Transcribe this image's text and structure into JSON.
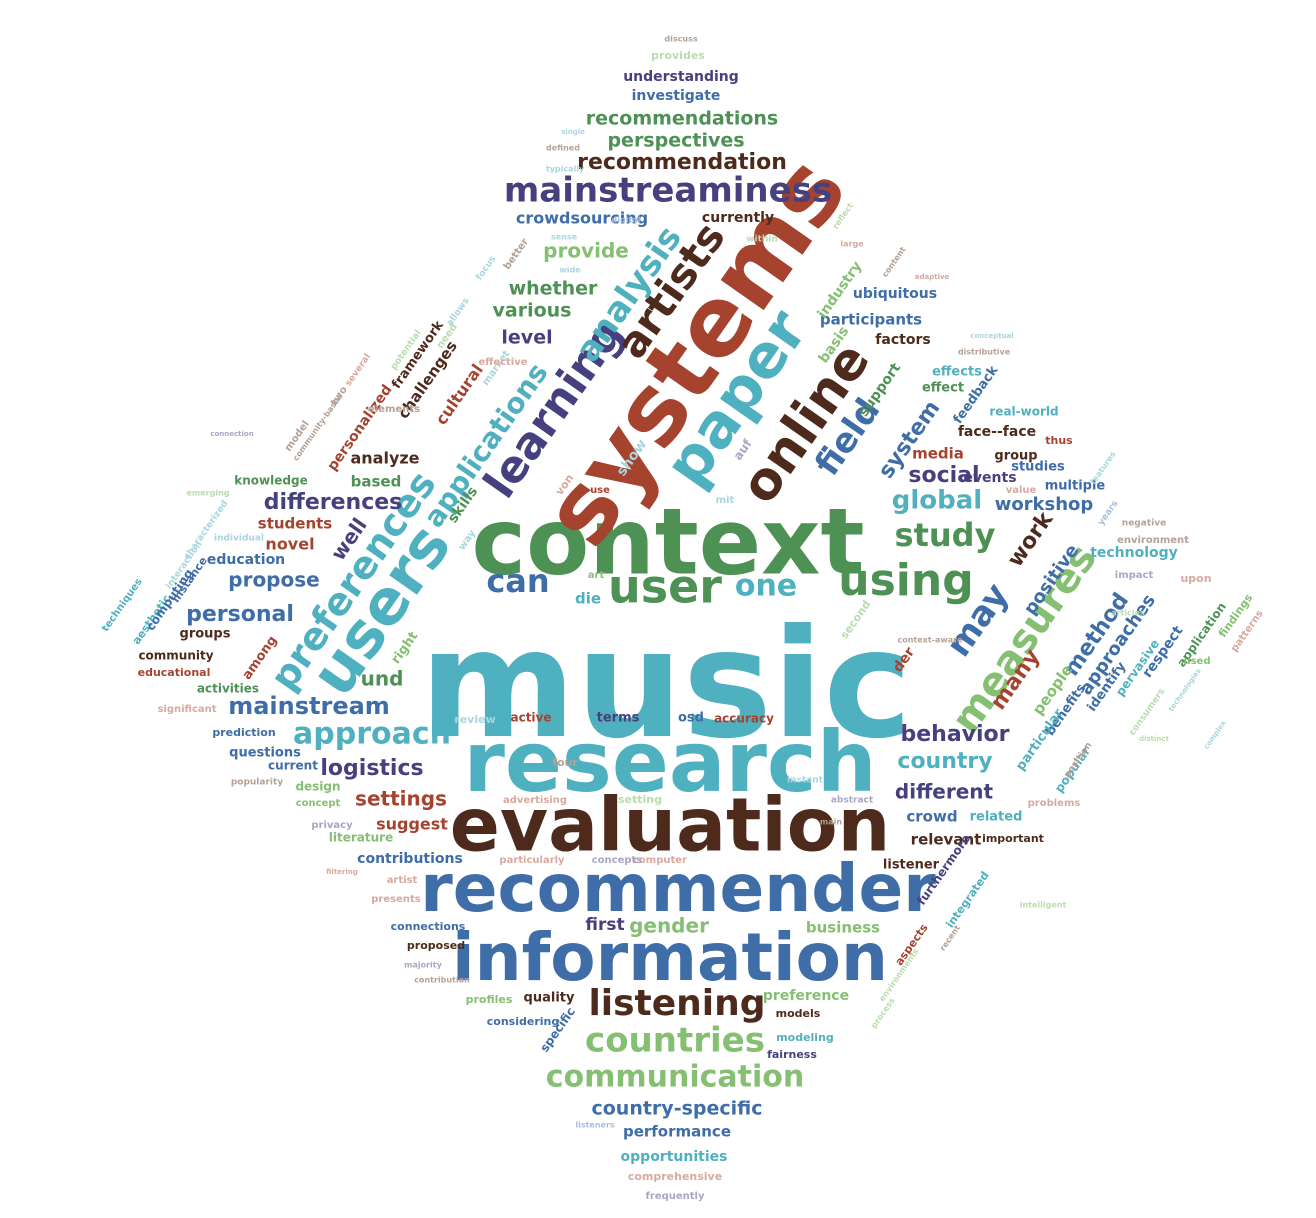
{
  "palette": {
    "teal": "#4fb0bf",
    "green": "#4e9154",
    "rust": "#a5432f",
    "navy": "#47407f",
    "brown": "#4d2a1c",
    "blue": "#3e6da8",
    "light_green": "#85bf72",
    "faint_teal": "#a9d6de",
    "faint_green": "#b9dcae",
    "faint_rust": "#d8a99e",
    "faint_navy": "#a9a5c6",
    "faint_blue": "#a8bfdc",
    "faint_brown": "#b5a195"
  },
  "words": [
    {
      "text": "music",
      "color": "teal"
    },
    {
      "text": "context",
      "color": "green"
    },
    {
      "text": "systems",
      "color": "rust"
    },
    {
      "text": "research",
      "color": "teal"
    },
    {
      "text": "evaluation",
      "color": "brown"
    },
    {
      "text": "recommender",
      "color": "blue"
    },
    {
      "text": "information",
      "color": "blue"
    },
    {
      "text": "paper",
      "color": "teal"
    },
    {
      "text": "users",
      "color": "teal"
    },
    {
      "text": "online",
      "color": "brown"
    },
    {
      "text": "learning",
      "color": "navy"
    },
    {
      "text": "user",
      "color": "green"
    },
    {
      "text": "using",
      "color": "green"
    },
    {
      "text": "preferences",
      "color": "teal"
    },
    {
      "text": "measures",
      "color": "light_green"
    },
    {
      "text": "artists",
      "color": "brown"
    },
    {
      "text": "analysis",
      "color": "teal"
    },
    {
      "text": "mainstreaminess",
      "color": "navy"
    },
    {
      "text": "field",
      "color": "blue"
    },
    {
      "text": "may",
      "color": "blue"
    },
    {
      "text": "can",
      "color": "blue"
    },
    {
      "text": "one",
      "color": "teal"
    },
    {
      "text": "applications",
      "color": "teal"
    },
    {
      "text": "listening",
      "color": "brown"
    },
    {
      "text": "countries",
      "color": "light_green"
    },
    {
      "text": "communication",
      "color": "light_green"
    },
    {
      "text": "approach",
      "color": "teal"
    },
    {
      "text": "study",
      "color": "green"
    },
    {
      "text": "global",
      "color": "teal"
    },
    {
      "text": "social",
      "color": "navy"
    },
    {
      "text": "mainstream",
      "color": "blue"
    },
    {
      "text": "logistics",
      "color": "navy"
    },
    {
      "text": "behavior",
      "color": "navy"
    },
    {
      "text": "country",
      "color": "teal"
    },
    {
      "text": "different",
      "color": "navy"
    },
    {
      "text": "settings",
      "color": "rust"
    },
    {
      "text": "recommendation",
      "color": "brown"
    },
    {
      "text": "recommendations",
      "color": "green"
    },
    {
      "text": "perspectives",
      "color": "green"
    },
    {
      "text": "crowdsourcing",
      "color": "blue"
    },
    {
      "text": "differences",
      "color": "navy"
    },
    {
      "text": "personal",
      "color": "blue"
    },
    {
      "text": "propose",
      "color": "blue"
    },
    {
      "text": "well",
      "color": "navy"
    },
    {
      "text": "und",
      "color": "green"
    },
    {
      "text": "system",
      "color": "blue"
    },
    {
      "text": "method",
      "color": "blue"
    },
    {
      "text": "approaches",
      "color": "blue"
    },
    {
      "text": "work",
      "color": "brown"
    },
    {
      "text": "many",
      "color": "rust"
    },
    {
      "text": "positive",
      "color": "blue"
    },
    {
      "text": "workshop",
      "color": "blue"
    },
    {
      "text": "gender",
      "color": "light_green"
    },
    {
      "text": "first",
      "color": "navy"
    },
    {
      "text": "business",
      "color": "light_green"
    },
    {
      "text": "preference",
      "color": "light_green"
    },
    {
      "text": "country-specific",
      "color": "blue"
    },
    {
      "text": "performance",
      "color": "blue"
    },
    {
      "text": "opportunities",
      "color": "teal"
    },
    {
      "text": "comprehensive",
      "color": "faint_rust"
    },
    {
      "text": "frequently",
      "color": "faint_navy"
    },
    {
      "text": "provide",
      "color": "light_green"
    },
    {
      "text": "whether",
      "color": "green"
    },
    {
      "text": "various",
      "color": "green"
    },
    {
      "text": "level",
      "color": "navy"
    },
    {
      "text": "currently",
      "color": "brown"
    },
    {
      "text": "participants",
      "color": "blue"
    },
    {
      "text": "ubiquitous",
      "color": "blue"
    },
    {
      "text": "industry",
      "color": "light_green"
    },
    {
      "text": "factors",
      "color": "brown"
    },
    {
      "text": "basis",
      "color": "light_green"
    },
    {
      "text": "support",
      "color": "green"
    },
    {
      "text": "effect",
      "color": "green"
    },
    {
      "text": "effects",
      "color": "teal"
    },
    {
      "text": "feedback",
      "color": "blue"
    },
    {
      "text": "real-world",
      "color": "teal"
    },
    {
      "text": "face--face",
      "color": "brown"
    },
    {
      "text": "group",
      "color": "brown"
    },
    {
      "text": "media",
      "color": "rust"
    },
    {
      "text": "events",
      "color": "navy"
    },
    {
      "text": "studies",
      "color": "blue"
    },
    {
      "text": "multiple",
      "color": "blue"
    },
    {
      "text": "technology",
      "color": "teal"
    },
    {
      "text": "understanding",
      "color": "navy"
    },
    {
      "text": "investigate",
      "color": "blue"
    },
    {
      "text": "provides",
      "color": "faint_green"
    },
    {
      "text": "cultural",
      "color": "rust"
    },
    {
      "text": "challenges",
      "color": "brown"
    },
    {
      "text": "framework",
      "color": "brown"
    },
    {
      "text": "personalized",
      "color": "rust"
    },
    {
      "text": "analyze",
      "color": "brown"
    },
    {
      "text": "based",
      "color": "green"
    },
    {
      "text": "students",
      "color": "rust"
    },
    {
      "text": "novel",
      "color": "rust"
    },
    {
      "text": "education",
      "color": "blue"
    },
    {
      "text": "groups",
      "color": "brown"
    },
    {
      "text": "community",
      "color": "brown"
    },
    {
      "text": "educational",
      "color": "rust"
    },
    {
      "text": "activities",
      "color": "green"
    },
    {
      "text": "among",
      "color": "rust"
    },
    {
      "text": "right",
      "color": "light_green"
    },
    {
      "text": "skills",
      "color": "green"
    },
    {
      "text": "die",
      "color": "teal"
    },
    {
      "text": "der",
      "color": "rust"
    },
    {
      "text": "people",
      "color": "light_green"
    },
    {
      "text": "benefits",
      "color": "blue"
    },
    {
      "text": "identify",
      "color": "blue"
    },
    {
      "text": "respect",
      "color": "blue"
    },
    {
      "text": "pervasive",
      "color": "teal"
    },
    {
      "text": "application",
      "color": "green"
    },
    {
      "text": "particular",
      "color": "teal"
    },
    {
      "text": "popular",
      "color": "teal"
    },
    {
      "text": "relevant",
      "color": "brown"
    },
    {
      "text": "crowd",
      "color": "blue"
    },
    {
      "text": "related",
      "color": "teal"
    },
    {
      "text": "important",
      "color": "brown"
    },
    {
      "text": "listener",
      "color": "brown"
    },
    {
      "text": "furthermore",
      "color": "navy"
    },
    {
      "text": "suggest",
      "color": "rust"
    },
    {
      "text": "contributions",
      "color": "blue"
    },
    {
      "text": "literature",
      "color": "light_green"
    },
    {
      "text": "terms",
      "color": "navy"
    },
    {
      "text": "osd",
      "color": "blue"
    },
    {
      "text": "accuracy",
      "color": "rust"
    },
    {
      "text": "active",
      "color": "rust"
    },
    {
      "text": "questions",
      "color": "blue"
    },
    {
      "text": "current",
      "color": "blue"
    },
    {
      "text": "design",
      "color": "light_green"
    },
    {
      "text": "prediction",
      "color": "blue"
    },
    {
      "text": "significant",
      "color": "faint_rust"
    },
    {
      "text": "techniques",
      "color": "teal"
    },
    {
      "text": "aesthetic",
      "color": "teal"
    },
    {
      "text": "computing",
      "color": "blue"
    },
    {
      "text": "instance",
      "color": "blue"
    },
    {
      "text": "knowledge",
      "color": "green"
    },
    {
      "text": "models",
      "color": "brown"
    },
    {
      "text": "modeling",
      "color": "teal"
    },
    {
      "text": "fairness",
      "color": "navy"
    },
    {
      "text": "quality",
      "color": "brown"
    },
    {
      "text": "specific",
      "color": "blue"
    },
    {
      "text": "considering",
      "color": "blue"
    },
    {
      "text": "profiles",
      "color": "light_green"
    },
    {
      "text": "proposed",
      "color": "brown"
    },
    {
      "text": "connections",
      "color": "blue"
    },
    {
      "text": "presents",
      "color": "faint_rust"
    },
    {
      "text": "artist",
      "color": "faint_rust"
    },
    {
      "text": "privacy",
      "color": "faint_navy"
    },
    {
      "text": "concept",
      "color": "light_green"
    },
    {
      "text": "popularity",
      "color": "faint_brown"
    },
    {
      "text": "integrated",
      "color": "teal"
    },
    {
      "text": "aspects",
      "color": "rust"
    },
    {
      "text": "problems",
      "color": "faint_rust"
    },
    {
      "text": "position",
      "color": "faint_brown"
    },
    {
      "text": "consumers",
      "color": "faint_green"
    },
    {
      "text": "used",
      "color": "light_green"
    },
    {
      "text": "findings",
      "color": "light_green"
    },
    {
      "text": "patterns",
      "color": "faint_rust"
    },
    {
      "text": "upon",
      "color": "faint_rust"
    },
    {
      "text": "impact",
      "color": "faint_navy"
    },
    {
      "text": "environment",
      "color": "faint_brown"
    },
    {
      "text": "negative",
      "color": "faint_brown"
    },
    {
      "text": "years",
      "color": "faint_blue"
    },
    {
      "text": "thus",
      "color": "rust"
    },
    {
      "text": "value",
      "color": "faint_rust"
    },
    {
      "text": "von",
      "color": "faint_rust"
    },
    {
      "text": "use",
      "color": "rust"
    },
    {
      "text": "show",
      "color": "faint_teal"
    },
    {
      "text": "auf",
      "color": "faint_navy"
    },
    {
      "text": "mit",
      "color": "faint_teal"
    },
    {
      "text": "way",
      "color": "faint_teal"
    },
    {
      "text": "art",
      "color": "light_green"
    },
    {
      "text": "second",
      "color": "faint_green"
    },
    {
      "text": "setting",
      "color": "faint_green"
    },
    {
      "text": "review",
      "color": "faint_teal"
    },
    {
      "text": "four",
      "color": "faint_brown"
    },
    {
      "text": "computer",
      "color": "faint_rust"
    },
    {
      "text": "concepts",
      "color": "faint_navy"
    },
    {
      "text": "advertising",
      "color": "faint_rust"
    },
    {
      "text": "particularly",
      "color": "faint_rust"
    },
    {
      "text": "several",
      "color": "faint_rust"
    },
    {
      "text": "two",
      "color": "faint_brown"
    },
    {
      "text": "model",
      "color": "faint_brown"
    },
    {
      "text": "elements",
      "color": "faint_brown"
    },
    {
      "text": "potential",
      "color": "faint_green"
    },
    {
      "text": "need",
      "color": "faint_green"
    },
    {
      "text": "allows",
      "color": "faint_teal"
    },
    {
      "text": "market",
      "color": "faint_teal"
    },
    {
      "text": "effective",
      "color": "faint_rust"
    },
    {
      "text": "better",
      "color": "faint_brown"
    },
    {
      "text": "focus",
      "color": "faint_teal"
    },
    {
      "text": "wide",
      "color": "faint_teal"
    },
    {
      "text": "individual",
      "color": "faint_teal"
    },
    {
      "text": "characterized",
      "color": "faint_teal"
    },
    {
      "text": "interaction",
      "color": "faint_teal"
    },
    {
      "text": "discuss",
      "color": "faint_brown"
    },
    {
      "text": "defined",
      "color": "faint_brown"
    },
    {
      "text": "typically",
      "color": "faint_teal"
    },
    {
      "text": "single",
      "color": "faint_teal"
    },
    {
      "text": "sense",
      "color": "faint_teal"
    },
    {
      "text": "digital",
      "color": "faint_blue"
    },
    {
      "text": "within",
      "color": "faint_green"
    },
    {
      "text": "reflect",
      "color": "faint_green"
    },
    {
      "text": "large",
      "color": "faint_rust"
    },
    {
      "text": "content",
      "color": "faint_brown"
    },
    {
      "text": "distributive",
      "color": "faint_brown"
    },
    {
      "text": "conceptual",
      "color": "faint_teal"
    },
    {
      "text": "adaptive",
      "color": "faint_rust"
    },
    {
      "text": "main",
      "color": "faint_brown"
    },
    {
      "text": "instant",
      "color": "faint_teal"
    },
    {
      "text": "abstract",
      "color": "faint_navy"
    },
    {
      "text": "majority",
      "color": "faint_navy"
    },
    {
      "text": "contribution",
      "color": "faint_brown"
    },
    {
      "text": "filtering",
      "color": "faint_rust"
    },
    {
      "text": "listeners",
      "color": "faint_blue"
    },
    {
      "text": "process",
      "color": "faint_green"
    },
    {
      "text": "environments",
      "color": "faint_green"
    },
    {
      "text": "recent",
      "color": "faint_brown"
    },
    {
      "text": "intelligent",
      "color": "faint_green"
    },
    {
      "text": "technologies",
      "color": "faint_teal"
    },
    {
      "text": "complex",
      "color": "faint_teal"
    },
    {
      "text": "context-aware",
      "color": "faint_brown"
    },
    {
      "text": "community-based",
      "color": "faint_brown"
    },
    {
      "text": "connection",
      "color": "faint_navy"
    },
    {
      "text": "emerging",
      "color": "faint_green"
    },
    {
      "text": "features",
      "color": "faint_teal"
    },
    {
      "text": "articles",
      "color": "faint_green"
    },
    {
      "text": "distinct",
      "color": "faint_green"
    }
  ]
}
